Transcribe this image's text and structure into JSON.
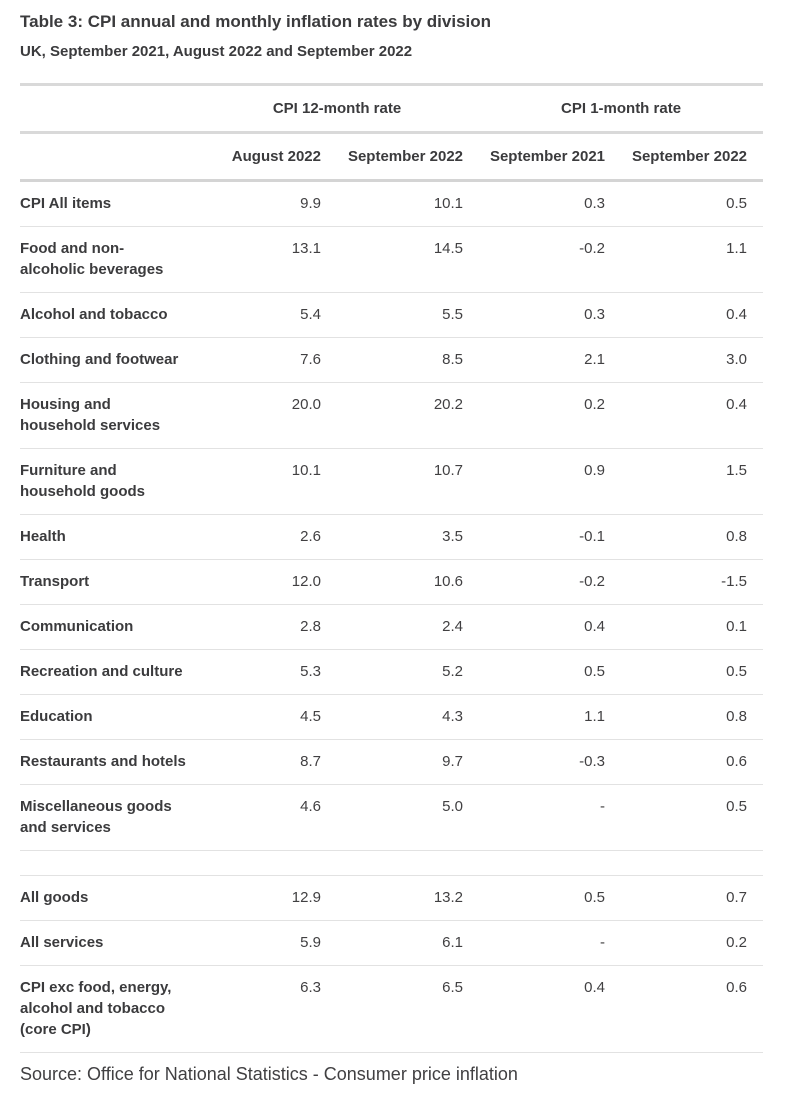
{
  "header": {
    "title": "Table 3: CPI annual and monthly inflation rates by division",
    "subtitle": "UK, September 2021, August 2022 and September 2022"
  },
  "footer": {
    "source": "Source: Office for National Statistics - Consumer price inflation"
  },
  "colors": {
    "text_bold": "#3b3b3d",
    "text_number": "#414042",
    "rule_thick": "#d9d9d9",
    "rule_thin": "#e2e2e2",
    "background": "#ffffff"
  },
  "chart_data": {
    "type": "table",
    "title": "Table 3: CPI annual and monthly inflation rates by division",
    "subtitle": "UK, September 2021, August 2022 and September 2022",
    "column_groups": [
      {
        "label": "CPI 12-month rate",
        "span": 2
      },
      {
        "label": "CPI 1-month rate",
        "span": 2
      }
    ],
    "columns": [
      "August 2022",
      "September 2022",
      "September 2021",
      "September 2022"
    ],
    "rows": [
      {
        "label": "CPI All items",
        "values": [
          "9.9",
          "10.1",
          "0.3",
          "0.5"
        ]
      },
      {
        "label": "Food and non-alcoholic beverages",
        "values": [
          "13.1",
          "14.5",
          "-0.2",
          "1.1"
        ]
      },
      {
        "label": "Alcohol and tobacco",
        "values": [
          "5.4",
          "5.5",
          "0.3",
          "0.4"
        ]
      },
      {
        "label": "Clothing and footwear",
        "values": [
          "7.6",
          "8.5",
          "2.1",
          "3.0"
        ]
      },
      {
        "label": "Housing and household services",
        "values": [
          "20.0",
          "20.2",
          "0.2",
          "0.4"
        ]
      },
      {
        "label": "Furniture and household goods",
        "values": [
          "10.1",
          "10.7",
          "0.9",
          "1.5"
        ]
      },
      {
        "label": "Health",
        "values": [
          "2.6",
          "3.5",
          "-0.1",
          "0.8"
        ]
      },
      {
        "label": "Transport",
        "values": [
          "12.0",
          "10.6",
          "-0.2",
          "-1.5"
        ]
      },
      {
        "label": "Communication",
        "values": [
          "2.8",
          "2.4",
          "0.4",
          "0.1"
        ]
      },
      {
        "label": "Recreation and culture",
        "values": [
          "5.3",
          "5.2",
          "0.5",
          "0.5"
        ]
      },
      {
        "label": "Education",
        "values": [
          "4.5",
          "4.3",
          "1.1",
          "0.8"
        ]
      },
      {
        "label": "Restaurants and hotels",
        "values": [
          "8.7",
          "9.7",
          "-0.3",
          "0.6"
        ]
      },
      {
        "label": "Miscellaneous goods and services",
        "values": [
          "4.6",
          "5.0",
          "-",
          "0.5"
        ]
      },
      {
        "spacer": true,
        "label": "",
        "values": [
          "",
          "",
          "",
          ""
        ]
      },
      {
        "label": "All goods",
        "values": [
          "12.9",
          "13.2",
          "0.5",
          "0.7"
        ]
      },
      {
        "label": "All services",
        "values": [
          "5.9",
          "6.1",
          "-",
          "0.2"
        ]
      },
      {
        "label": "CPI exc food, energy, alcohol and tobacco (core CPI)",
        "values": [
          "6.3",
          "6.5",
          "0.4",
          "0.6"
        ]
      }
    ]
  }
}
